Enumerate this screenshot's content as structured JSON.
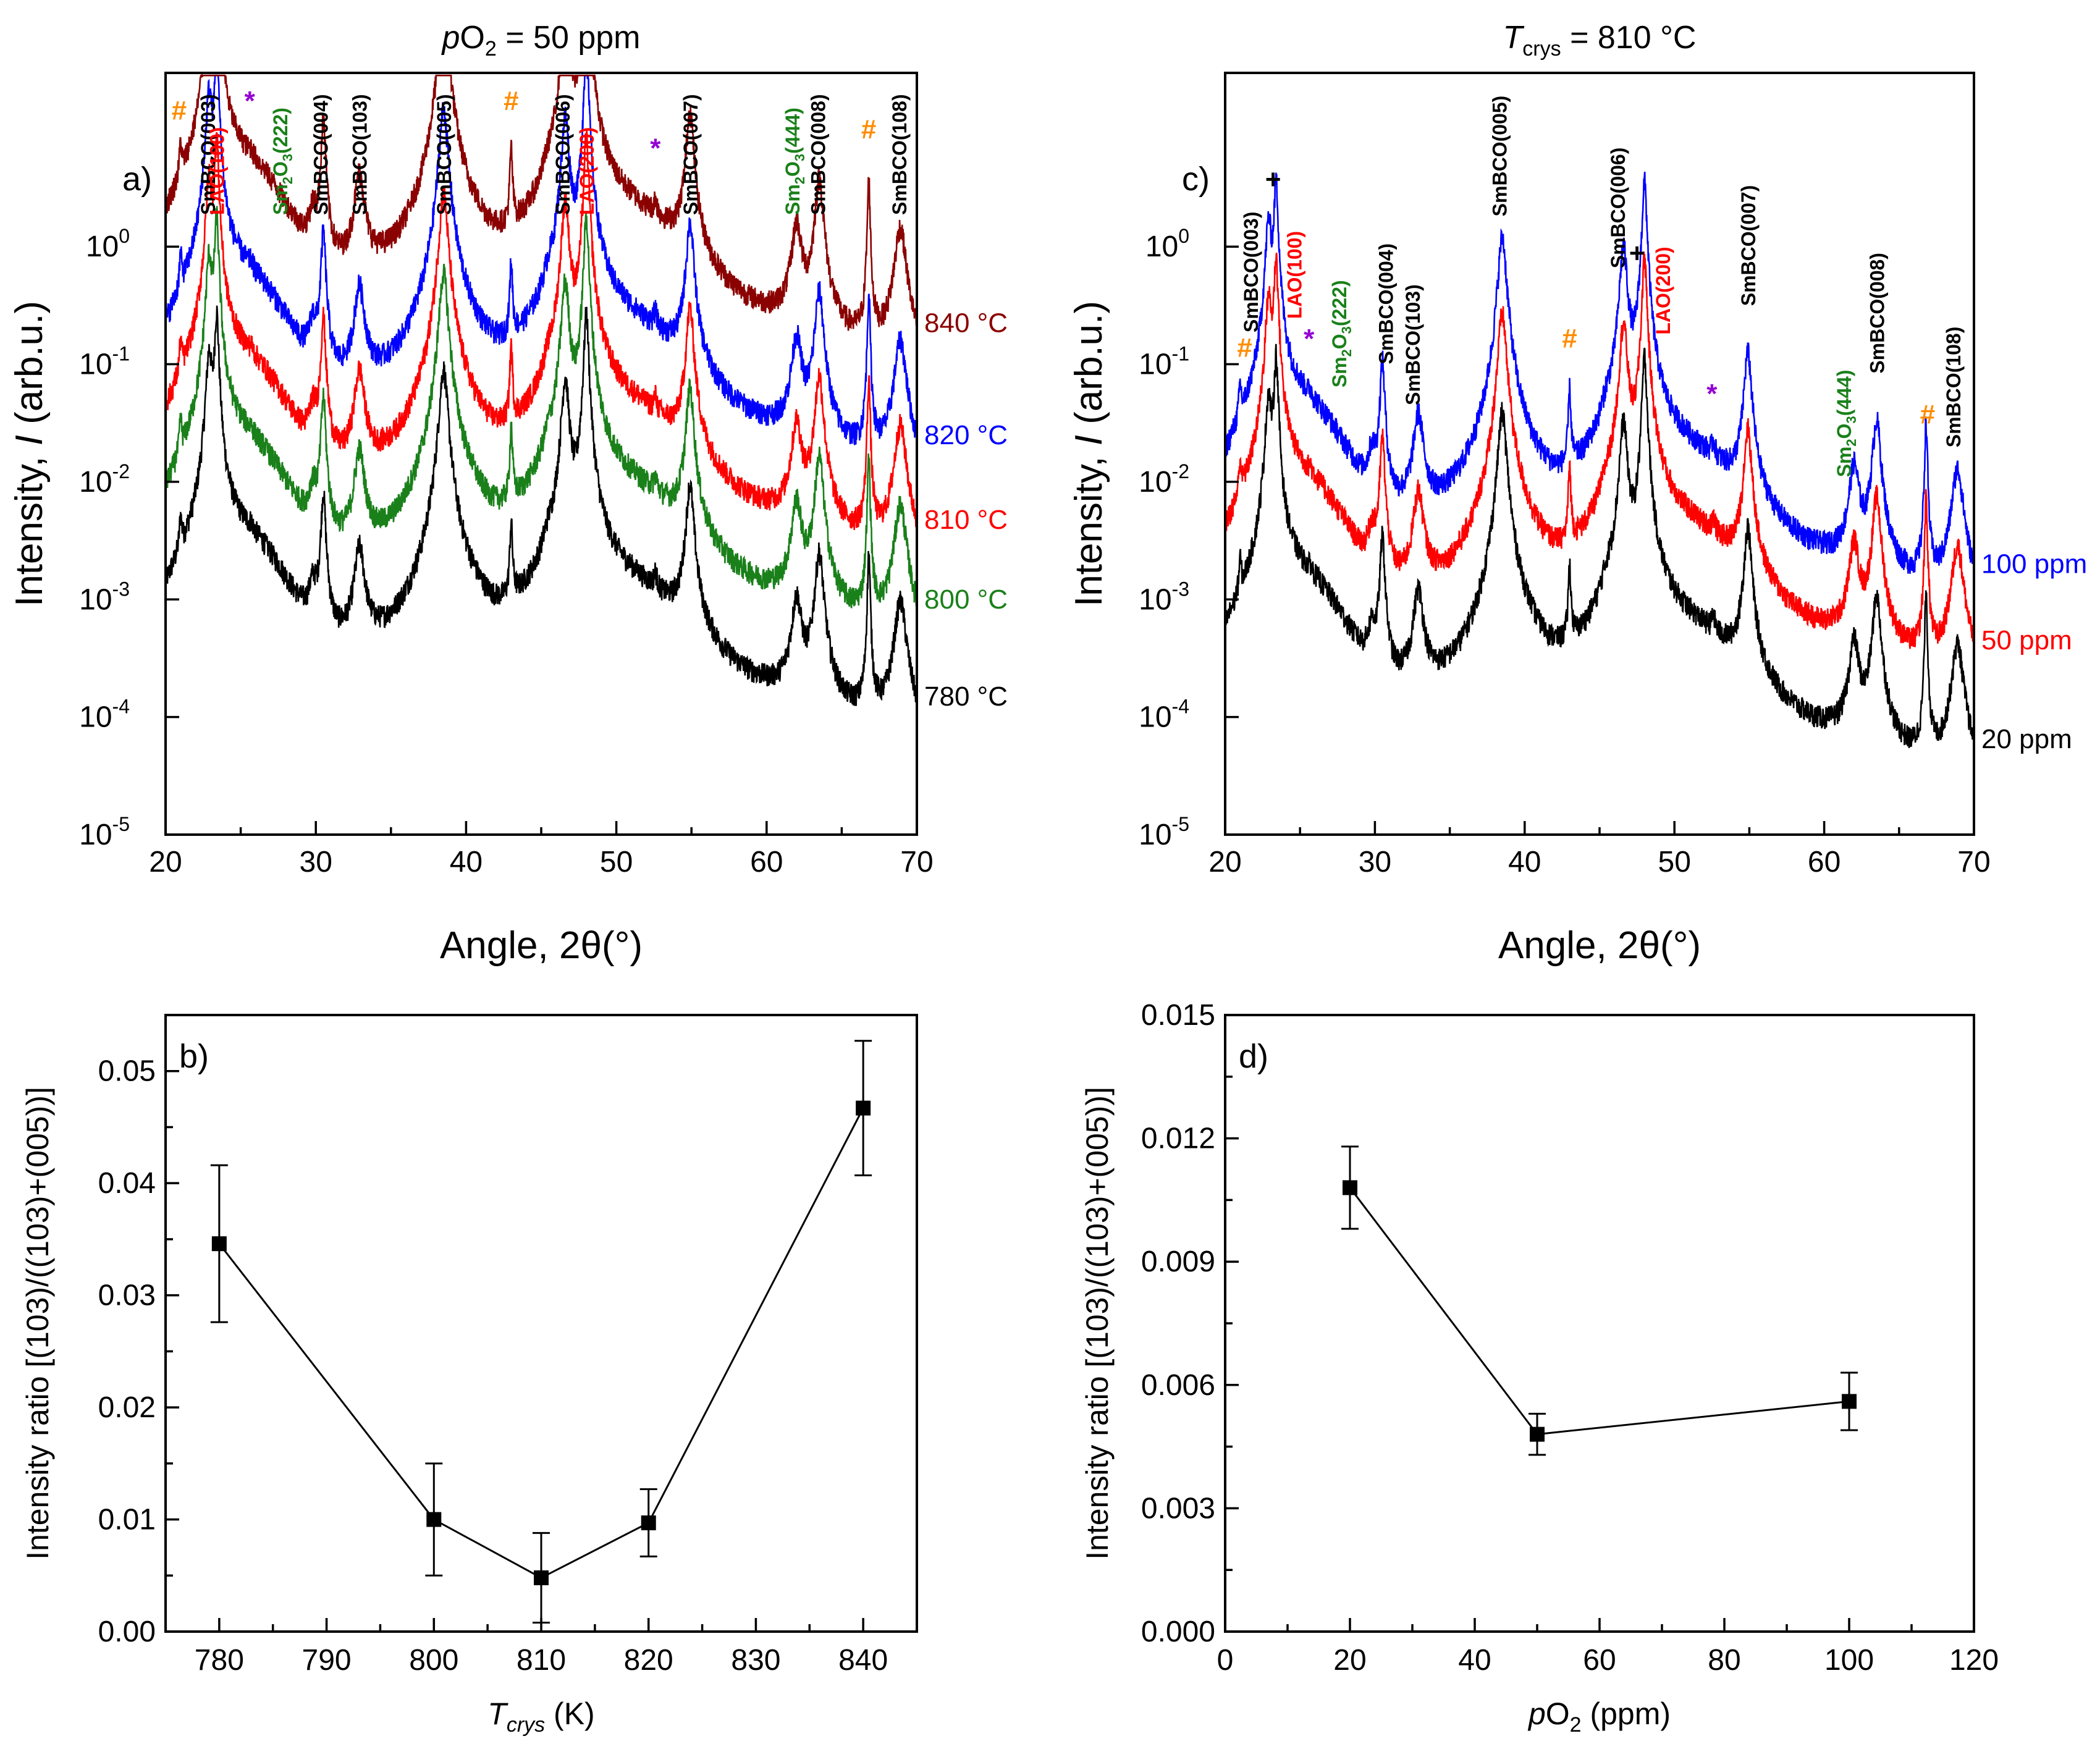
{
  "chart_data": [
    {
      "id": "a",
      "panel_label": "a)",
      "type": "line",
      "title": "pO2 = 50 ppm",
      "title_parts": {
        "pre_italic": "p",
        "main": "O",
        "sub": "2",
        "post": " = 50 ppm"
      },
      "xlabel": "Angle, 2θ(°)",
      "ylabel_parts": {
        "pre": "Intensity, ",
        "italic": "I",
        "post": " (arb.u.)"
      },
      "xlim": [
        20,
        70
      ],
      "xticks": [
        "20",
        "30",
        "40",
        "50",
        "60",
        "70"
      ],
      "yscale": "log",
      "ylim": [
        1e-05,
        30
      ],
      "yticks": [
        {
          "base": "10",
          "exp": "-5",
          "value": 1e-05
        },
        {
          "base": "10",
          "exp": "-4",
          "value": 0.0001
        },
        {
          "base": "10",
          "exp": "-3",
          "value": 0.001
        },
        {
          "base": "10",
          "exp": "-2",
          "value": 0.01
        },
        {
          "base": "10",
          "exp": "-1",
          "value": 0.1
        },
        {
          "base": "10",
          "exp": "0",
          "value": 1
        }
      ],
      "series": [
        {
          "name": "780 °C",
          "color": "#000000",
          "offset": 0.0003
        },
        {
          "name": "800 °C",
          "color": "#1a801a",
          "offset": 0.002
        },
        {
          "name": "810 °C",
          "color": "#ff0000",
          "offset": 0.0095
        },
        {
          "name": "820 °C",
          "color": "#0000ff",
          "offset": 0.05
        },
        {
          "name": "840 °C",
          "color": "#8b0000",
          "offset": 0.45
        }
      ],
      "peak_labels": [
        {
          "text": "SmBCO(003)",
          "x": 22.8,
          "color": "#000000"
        },
        {
          "text": "LAO(100)",
          "x": 23.4,
          "color": "#ff0000"
        },
        {
          "text": "Sm2O3(222)",
          "x": 27.6,
          "color": "#1a801a",
          "sub": true
        },
        {
          "text": "SmBCO(004)",
          "x": 30.3,
          "color": "#000000"
        },
        {
          "text": "SmBCO(103)",
          "x": 32.9,
          "color": "#000000"
        },
        {
          "text": "SmBCO(005)",
          "x": 38.5,
          "color": "#000000"
        },
        {
          "text": "SmBCO(006)",
          "x": 46.4,
          "color": "#000000"
        },
        {
          "text": "LAO(200)",
          "x": 48.0,
          "color": "#ff0000"
        },
        {
          "text": "SmBCO(007)",
          "x": 54.9,
          "color": "#000000"
        },
        {
          "text": "Sm2O3(444)",
          "x": 61.7,
          "color": "#1a801a",
          "sub": true
        },
        {
          "text": "SmBCO(008)",
          "x": 63.4,
          "color": "#000000"
        },
        {
          "text": "SmBCO(108)",
          "x": 68.8,
          "color": "#000000"
        }
      ],
      "markers": [
        {
          "symbol": "#",
          "x": 20.9,
          "color": "#ff8c00"
        },
        {
          "symbol": "*",
          "x": 25.6,
          "color": "#9400d3"
        },
        {
          "symbol": "#",
          "x": 43.0,
          "color": "#ff8c00"
        },
        {
          "symbol": "*",
          "x": 52.6,
          "color": "#9400d3"
        },
        {
          "symbol": "#",
          "x": 66.8,
          "color": "#ff8c00"
        }
      ]
    },
    {
      "id": "b",
      "panel_label": "b)",
      "type": "line",
      "xlabel_parts": {
        "italic": "T",
        "sub": "crys",
        "post": " (K)"
      },
      "ylabel": "Intensity ratio [(103)/((103)+(005))]",
      "xlim": [
        775,
        845
      ],
      "ylim": [
        0,
        0.055
      ],
      "xticks": [
        "780",
        "790",
        "800",
        "810",
        "820",
        "830",
        "840"
      ],
      "yticks": [
        "0.00",
        "0.01",
        "0.02",
        "0.03",
        "0.04",
        "0.05"
      ],
      "points": [
        {
          "x": 780,
          "y": 0.0346,
          "err": 0.007
        },
        {
          "x": 800,
          "y": 0.01,
          "err": 0.005
        },
        {
          "x": 810,
          "y": 0.0048,
          "err": 0.004
        },
        {
          "x": 820,
          "y": 0.0097,
          "err": 0.003
        },
        {
          "x": 840,
          "y": 0.0467,
          "err": 0.006
        }
      ]
    },
    {
      "id": "c",
      "panel_label": "c)",
      "type": "line",
      "title_parts": {
        "pre_italic": "T",
        "sub": "crys",
        "post": " = 810 °C"
      },
      "xlabel": "Angle, 2θ(°)",
      "ylabel_parts": {
        "pre": "Intensity, ",
        "italic": "I",
        "post": " (arb.u.)"
      },
      "xlim": [
        20,
        70
      ],
      "xticks": [
        "20",
        "30",
        "40",
        "50",
        "60",
        "70"
      ],
      "yscale": "log",
      "ylim": [
        1e-05,
        30
      ],
      "yticks": [
        {
          "base": "10",
          "exp": "-5",
          "value": 1e-05
        },
        {
          "base": "10",
          "exp": "-4",
          "value": 0.0001
        },
        {
          "base": "10",
          "exp": "-3",
          "value": 0.001
        },
        {
          "base": "10",
          "exp": "-2",
          "value": 0.01
        },
        {
          "base": "10",
          "exp": "-1",
          "value": 0.1
        },
        {
          "base": "10",
          "exp": "0",
          "value": 1
        }
      ],
      "series": [
        {
          "name": "20 ppm",
          "color": "#000000",
          "offset": 0.00013
        },
        {
          "name": "50 ppm",
          "color": "#ff0000",
          "offset": 0.0009
        },
        {
          "name": "100 ppm",
          "color": "#0000ff",
          "offset": 0.004
        }
      ],
      "peak_labels": [
        {
          "text": "SmBCO(003)",
          "x": 21.7,
          "color": "#000000"
        },
        {
          "text": "LAO(100)",
          "x": 24.6,
          "color": "#ff0000"
        },
        {
          "text": "Sm2O3(222)",
          "x": 27.6,
          "color": "#1a801a",
          "sub": true
        },
        {
          "text": "SmBCO(004)",
          "x": 30.7,
          "color": "#000000"
        },
        {
          "text": "SmBCO(103)",
          "x": 32.5,
          "color": "#000000"
        },
        {
          "text": "SmBCO(005)",
          "x": 38.3,
          "color": "#000000"
        },
        {
          "text": "SmBCO(006)",
          "x": 46.2,
          "color": "#000000"
        },
        {
          "text": "LAO(200)",
          "x": 49.2,
          "color": "#ff0000"
        },
        {
          "text": "SmBCO(007)",
          "x": 54.9,
          "color": "#000000"
        },
        {
          "text": "Sm2O3(444)",
          "x": 61.3,
          "color": "#1a801a",
          "sub": true
        },
        {
          "text": "SmBCO(008)",
          "x": 63.5,
          "color": "#000000"
        },
        {
          "text": "SmBCO(108)",
          "x": 68.6,
          "color": "#000000"
        }
      ],
      "markers": [
        {
          "symbol": "#",
          "x": 21.3,
          "color": "#ff8c00"
        },
        {
          "symbol": "+",
          "x": 23.2,
          "color": "#000000"
        },
        {
          "symbol": "*",
          "x": 25.6,
          "color": "#9400d3"
        },
        {
          "symbol": "#",
          "x": 43.0,
          "color": "#ff8c00"
        },
        {
          "symbol": "+",
          "x": 47.5,
          "color": "#000000"
        },
        {
          "symbol": "*",
          "x": 52.5,
          "color": "#9400d3"
        },
        {
          "symbol": "#",
          "x": 66.9,
          "color": "#ff8c00"
        }
      ]
    },
    {
      "id": "d",
      "panel_label": "d)",
      "type": "line",
      "xlabel_parts": {
        "italic": "p",
        "main": "O",
        "sub": "2",
        "post": " (ppm)"
      },
      "ylabel": "Intensity ratio [(103)/((103)+(005))]",
      "xlim": [
        0,
        120
      ],
      "ylim": [
        0,
        0.015
      ],
      "xticks": [
        "0",
        "20",
        "40",
        "60",
        "80",
        "100",
        "120"
      ],
      "yticks": [
        "0.000",
        "0.003",
        "0.006",
        "0.009",
        "0.012",
        "0.015"
      ],
      "points": [
        {
          "x": 20,
          "y": 0.0108,
          "err": 0.001
        },
        {
          "x": 50,
          "y": 0.0048,
          "err": 0.0005
        },
        {
          "x": 100,
          "y": 0.0056,
          "err": 0.0007
        }
      ]
    }
  ]
}
